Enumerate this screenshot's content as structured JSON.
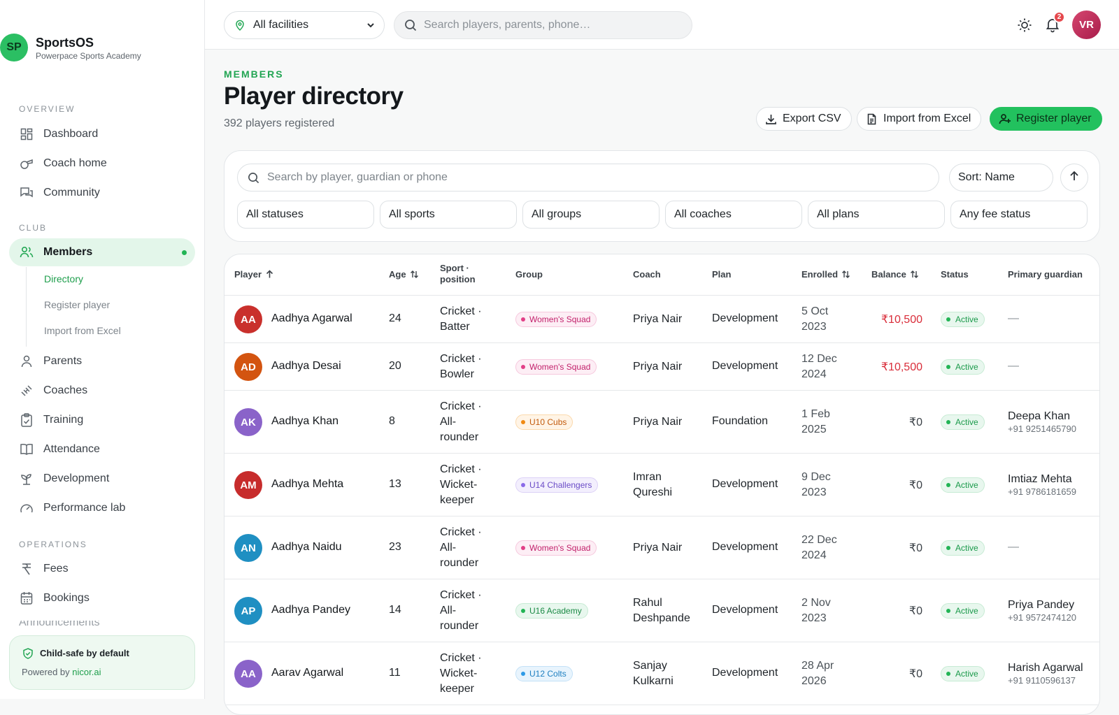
{
  "brand": {
    "initials": "SP",
    "name": "SportsOS",
    "subtitle": "Powerpace Sports Academy"
  },
  "sidebar": {
    "sections": {
      "overview": "OVERVIEW",
      "club": "CLUB",
      "operations": "OPERATIONS"
    },
    "overview_items": [
      {
        "label": "Dashboard",
        "icon": "dashboard-icon"
      },
      {
        "label": "Coach home",
        "icon": "whistle-icon"
      },
      {
        "label": "Community",
        "icon": "chat-icon"
      }
    ],
    "club_items": [
      {
        "label": "Members",
        "icon": "users-icon",
        "active": true
      },
      {
        "label": "Parents",
        "icon": "user-icon"
      },
      {
        "label": "Coaches",
        "icon": "dumbbell-icon"
      },
      {
        "label": "Training",
        "icon": "clipboard-icon"
      },
      {
        "label": "Attendance",
        "icon": "book-icon"
      },
      {
        "label": "Development",
        "icon": "sprout-icon"
      },
      {
        "label": "Performance lab",
        "icon": "gauge-icon"
      }
    ],
    "members_sub": [
      "Directory",
      "Register player",
      "Import from Excel"
    ],
    "operations_items": [
      {
        "label": "Fees",
        "icon": "rupee-icon"
      },
      {
        "label": "Bookings",
        "icon": "calendar-icon"
      }
    ],
    "cut_off_item": "Announcements",
    "safe_card": {
      "title": "Child-safe by default",
      "powered_prefix": "Powered by ",
      "powered_link": "nicor.ai"
    }
  },
  "topbar": {
    "facility": "All facilities",
    "search_placeholder": "Search players, parents, phone…",
    "notification_count": "2",
    "user_initials": "VR"
  },
  "header": {
    "eyebrow": "MEMBERS",
    "title": "Player directory",
    "subtitle": "392 players registered",
    "export_label": "Export CSV",
    "import_label": "Import from Excel",
    "register_label": "Register player"
  },
  "filters": {
    "search_placeholder": "Search by player, guardian or phone",
    "sort_label": "Sort: Name",
    "selects": [
      "All statuses",
      "All sports",
      "All groups",
      "All coaches",
      "All plans",
      "Any fee status"
    ]
  },
  "table": {
    "columns": {
      "player": "Player",
      "age": "Age",
      "sport_l1": "Sport ·",
      "sport_l2": "position",
      "group": "Group",
      "coach": "Coach",
      "plan": "Plan",
      "enrolled": "Enrolled",
      "balance": "Balance",
      "status": "Status",
      "guardian": "Primary guardian"
    },
    "rows": [
      {
        "initials": "AA",
        "avatar_color": "#c9302c",
        "name": "Aadhya Agarwal",
        "age": "24",
        "sport": [
          "Cricket ·",
          "Batter"
        ],
        "group": "Women's Squad",
        "group_color": "pink",
        "coach": [
          "Priya Nair"
        ],
        "plan": "Development",
        "enrolled": [
          "5 Oct",
          "2023"
        ],
        "balance": "₹10,500",
        "balance_due": true,
        "status": "Active",
        "guardian_name": "—",
        "guardian_phone": ""
      },
      {
        "initials": "AD",
        "avatar_color": "#d35410",
        "name": "Aadhya Desai",
        "age": "20",
        "sport": [
          "Cricket ·",
          "Bowler"
        ],
        "group": "Women's Squad",
        "group_color": "pink",
        "coach": [
          "Priya Nair"
        ],
        "plan": "Development",
        "enrolled": [
          "12 Dec",
          "2024"
        ],
        "balance": "₹10,500",
        "balance_due": true,
        "status": "Active",
        "guardian_name": "—",
        "guardian_phone": ""
      },
      {
        "initials": "AK",
        "avatar_color": "#8a63c9",
        "name": "Aadhya Khan",
        "age": "8",
        "sport": [
          "Cricket ·",
          "All-",
          "rounder"
        ],
        "group": "U10 Cubs",
        "group_color": "orange",
        "coach": [
          "Priya Nair"
        ],
        "plan": "Foundation",
        "enrolled": [
          "1 Feb",
          "2025"
        ],
        "balance": "₹0",
        "balance_due": false,
        "status": "Active",
        "guardian_name": "Deepa Khan",
        "guardian_phone": "+91 9251465790"
      },
      {
        "initials": "AM",
        "avatar_color": "#c72c2c",
        "name": "Aadhya Mehta",
        "age": "13",
        "sport": [
          "Cricket ·",
          "Wicket-",
          "keeper"
        ],
        "group": "U14 Challengers",
        "group_color": "purple",
        "coach": [
          "Imran",
          "Qureshi"
        ],
        "plan": "Development",
        "enrolled": [
          "9 Dec",
          "2023"
        ],
        "balance": "₹0",
        "balance_due": false,
        "status": "Active",
        "guardian_name": "Imtiaz Mehta",
        "guardian_phone": "+91 9786181659"
      },
      {
        "initials": "AN",
        "avatar_color": "#1f8fc2",
        "name": "Aadhya Naidu",
        "age": "23",
        "sport": [
          "Cricket ·",
          "All-",
          "rounder"
        ],
        "group": "Women's Squad",
        "group_color": "pink",
        "coach": [
          "Priya Nair"
        ],
        "plan": "Development",
        "enrolled": [
          "22 Dec",
          "2024"
        ],
        "balance": "₹0",
        "balance_due": false,
        "status": "Active",
        "guardian_name": "—",
        "guardian_phone": ""
      },
      {
        "initials": "AP",
        "avatar_color": "#1f8fc2",
        "name": "Aadhya Pandey",
        "age": "14",
        "sport": [
          "Cricket ·",
          "All-",
          "rounder"
        ],
        "group": "U16 Academy",
        "group_color": "green",
        "coach": [
          "Rahul",
          "Deshpande"
        ],
        "plan": "Development",
        "enrolled": [
          "2 Nov",
          "2023"
        ],
        "balance": "₹0",
        "balance_due": false,
        "status": "Active",
        "guardian_name": "Priya Pandey",
        "guardian_phone": "+91 9572474120"
      },
      {
        "initials": "AA",
        "avatar_color": "#8a63c9",
        "name": "Aarav Agarwal",
        "age": "11",
        "sport": [
          "Cricket ·",
          "Wicket-",
          "keeper"
        ],
        "group": "U12 Colts",
        "group_color": "blue",
        "coach": [
          "Sanjay",
          "Kulkarni"
        ],
        "plan": "Development",
        "enrolled": [
          "28 Apr",
          "2026"
        ],
        "balance": "₹0",
        "balance_due": false,
        "status": "Active",
        "guardian_name": "Harish Agarwal",
        "guardian_phone": "+91 9110596137"
      }
    ]
  },
  "colors": {
    "accent": "#22c15e",
    "balance_due": "#d92d3a",
    "status_active": "#1b9a4b"
  }
}
